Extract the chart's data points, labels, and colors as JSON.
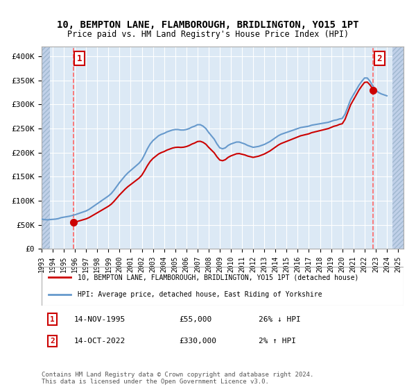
{
  "title1": "10, BEMPTON LANE, FLAMBOROUGH, BRIDLINGTON, YO15 1PT",
  "title2": "Price paid vs. HM Land Registry's House Price Index (HPI)",
  "ylabel": "",
  "ylim": [
    0,
    420000
  ],
  "yticks": [
    0,
    50000,
    100000,
    150000,
    200000,
    250000,
    300000,
    350000,
    400000
  ],
  "ytick_labels": [
    "£0",
    "£50K",
    "£100K",
    "£150K",
    "£200K",
    "£250K",
    "£300K",
    "£350K",
    "£400K"
  ],
  "xlim_start": 1993.0,
  "xlim_end": 2025.5,
  "background_color": "#ffffff",
  "plot_bg_color": "#dce9f5",
  "hatch_color": "#c0d0e8",
  "grid_color": "#ffffff",
  "hpi_color": "#6699cc",
  "sale_color": "#cc0000",
  "annotation_box_color": "#cc0000",
  "dashed_line_color": "#ff6666",
  "sale1_x": 1995.87,
  "sale1_y": 55000,
  "sale2_x": 2022.79,
  "sale2_y": 330000,
  "legend_line1": "10, BEMPTON LANE, FLAMBOROUGH, BRIDLINGTON, YO15 1PT (detached house)",
  "legend_line2": "HPI: Average price, detached house, East Riding of Yorkshire",
  "note1_label": "1",
  "note1_date": "14-NOV-1995",
  "note1_price": "£55,000",
  "note1_hpi": "26% ↓ HPI",
  "note2_label": "2",
  "note2_date": "14-OCT-2022",
  "note2_price": "£330,000",
  "note2_hpi": "2% ↑ HPI",
  "footer": "Contains HM Land Registry data © Crown copyright and database right 2024.\nThis data is licensed under the Open Government Licence v3.0.",
  "hpi_data_x": [
    1993.0,
    1993.25,
    1993.5,
    1993.75,
    1994.0,
    1994.25,
    1994.5,
    1994.75,
    1995.0,
    1995.25,
    1995.5,
    1995.75,
    1996.0,
    1996.25,
    1996.5,
    1996.75,
    1997.0,
    1997.25,
    1997.5,
    1997.75,
    1998.0,
    1998.25,
    1998.5,
    1998.75,
    1999.0,
    1999.25,
    1999.5,
    1999.75,
    2000.0,
    2000.25,
    2000.5,
    2000.75,
    2001.0,
    2001.25,
    2001.5,
    2001.75,
    2002.0,
    2002.25,
    2002.5,
    2002.75,
    2003.0,
    2003.25,
    2003.5,
    2003.75,
    2004.0,
    2004.25,
    2004.5,
    2004.75,
    2005.0,
    2005.25,
    2005.5,
    2005.75,
    2006.0,
    2006.25,
    2006.5,
    2006.75,
    2007.0,
    2007.25,
    2007.5,
    2007.75,
    2008.0,
    2008.25,
    2008.5,
    2008.75,
    2009.0,
    2009.25,
    2009.5,
    2009.75,
    2010.0,
    2010.25,
    2010.5,
    2010.75,
    2011.0,
    2011.25,
    2011.5,
    2011.75,
    2012.0,
    2012.25,
    2012.5,
    2012.75,
    2013.0,
    2013.25,
    2013.5,
    2013.75,
    2014.0,
    2014.25,
    2014.5,
    2014.75,
    2015.0,
    2015.25,
    2015.5,
    2015.75,
    2016.0,
    2016.25,
    2016.5,
    2016.75,
    2017.0,
    2017.25,
    2017.5,
    2017.75,
    2018.0,
    2018.25,
    2018.5,
    2018.75,
    2019.0,
    2019.25,
    2019.5,
    2019.75,
    2020.0,
    2020.25,
    2020.5,
    2020.75,
    2021.0,
    2021.25,
    2021.5,
    2021.75,
    2022.0,
    2022.25,
    2022.5,
    2022.75,
    2023.0,
    2023.25,
    2023.5,
    2023.75,
    2024.0
  ],
  "hpi_data_y": [
    62000,
    61000,
    60500,
    61000,
    61500,
    62000,
    63000,
    65000,
    66000,
    67000,
    68000,
    69500,
    71000,
    73000,
    75000,
    77000,
    79000,
    82000,
    86000,
    90000,
    94000,
    98000,
    102000,
    106000,
    110000,
    115000,
    122000,
    130000,
    138000,
    145000,
    152000,
    158000,
    163000,
    168000,
    173000,
    178000,
    185000,
    196000,
    208000,
    218000,
    225000,
    230000,
    235000,
    238000,
    240000,
    243000,
    245000,
    247000,
    248000,
    248000,
    247000,
    247000,
    248000,
    250000,
    253000,
    255000,
    258000,
    258000,
    255000,
    250000,
    242000,
    235000,
    228000,
    218000,
    210000,
    208000,
    210000,
    215000,
    218000,
    220000,
    222000,
    222000,
    220000,
    218000,
    215000,
    213000,
    211000,
    212000,
    213000,
    215000,
    217000,
    220000,
    223000,
    227000,
    231000,
    235000,
    238000,
    240000,
    242000,
    244000,
    246000,
    248000,
    250000,
    252000,
    253000,
    254000,
    255000,
    257000,
    258000,
    259000,
    260000,
    261000,
    262000,
    263000,
    265000,
    267000,
    268000,
    270000,
    271000,
    280000,
    295000,
    310000,
    320000,
    330000,
    340000,
    348000,
    355000,
    355000,
    348000,
    338000,
    330000,
    325000,
    322000,
    320000,
    318000
  ]
}
